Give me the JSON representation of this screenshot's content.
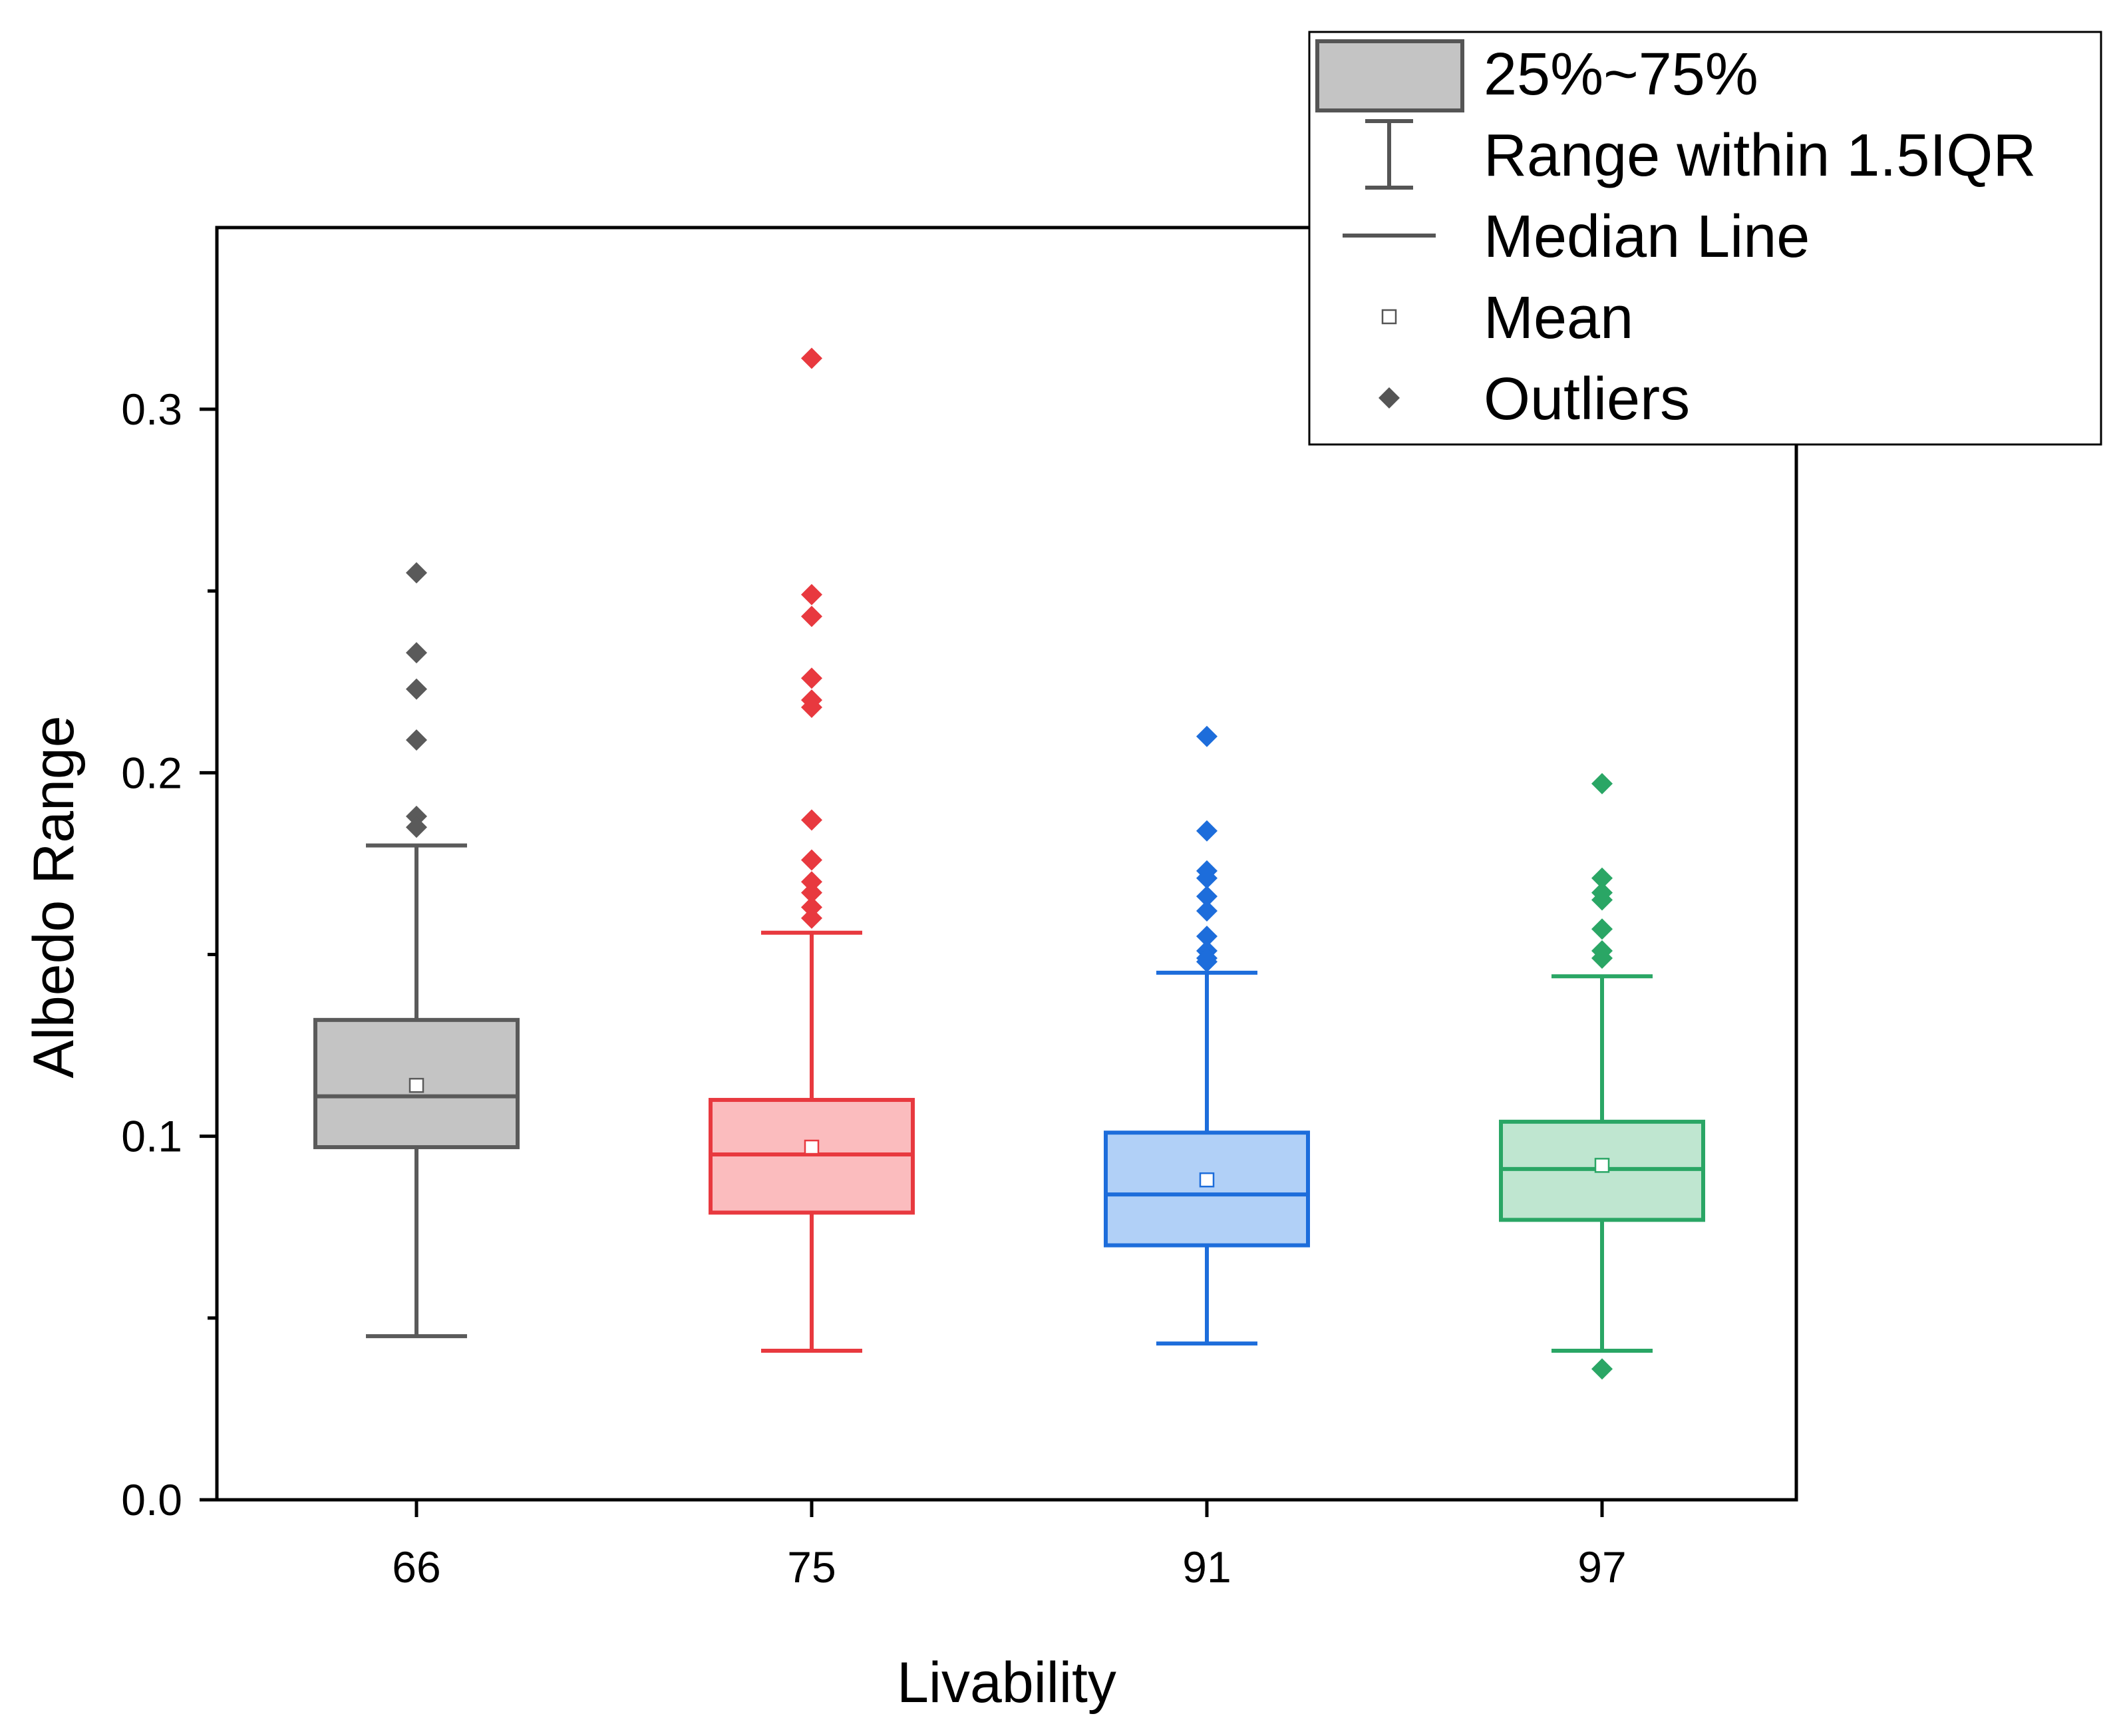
{
  "chart_data": {
    "type": "box",
    "title": "",
    "xlabel": "Livability",
    "ylabel": "Albedo Range",
    "ylim": [
      0.0,
      0.35
    ],
    "yticks": [
      "0.0",
      "0.1",
      "0.2",
      "0.3"
    ],
    "grid": false,
    "legend_position": "top-right",
    "legend": [
      {
        "symbol": "box",
        "label": "25%~75%",
        "color": "#555555"
      },
      {
        "symbol": "whisker",
        "label": "Range within 1.5IQR",
        "color": "#555555"
      },
      {
        "symbol": "median",
        "label": "Median Line",
        "color": "#555555"
      },
      {
        "symbol": "mean",
        "label": "Mean",
        "color": "#555555"
      },
      {
        "symbol": "outlier",
        "label": "Outliers",
        "color": "#555555"
      }
    ],
    "categories": [
      "66",
      "75",
      "91",
      "97"
    ],
    "series": [
      {
        "name": "66",
        "stroke": "#5a5a5a",
        "fill": "#c4c4c4",
        "whisker_low": 0.045,
        "q1": 0.097,
        "median": 0.111,
        "q3": 0.132,
        "whisker_high": 0.18,
        "mean": 0.114,
        "outliers": [
          0.255,
          0.233,
          0.223,
          0.209,
          0.188,
          0.185
        ]
      },
      {
        "name": "75",
        "stroke": "#e8393f",
        "fill": "#fbbcbe",
        "whisker_low": 0.041,
        "q1": 0.079,
        "median": 0.095,
        "q3": 0.11,
        "whisker_high": 0.156,
        "mean": 0.097,
        "outliers": [
          0.314,
          0.249,
          0.243,
          0.226,
          0.22,
          0.218,
          0.187,
          0.176,
          0.17,
          0.167,
          0.163,
          0.16
        ]
      },
      {
        "name": "91",
        "stroke": "#1d6ddb",
        "fill": "#b1d0f7",
        "whisker_low": 0.043,
        "q1": 0.07,
        "median": 0.084,
        "q3": 0.101,
        "whisker_high": 0.145,
        "mean": 0.088,
        "outliers": [
          0.21,
          0.184,
          0.173,
          0.171,
          0.166,
          0.162,
          0.155,
          0.151,
          0.149,
          0.148
        ]
      },
      {
        "name": "97",
        "stroke": "#2aa665",
        "fill": "#bfe6d0",
        "whisker_low": 0.041,
        "q1": 0.077,
        "median": 0.091,
        "q3": 0.104,
        "whisker_high": 0.144,
        "mean": 0.092,
        "outliers": [
          0.197,
          0.171,
          0.167,
          0.165,
          0.157,
          0.151,
          0.149,
          0.036
        ]
      }
    ]
  }
}
